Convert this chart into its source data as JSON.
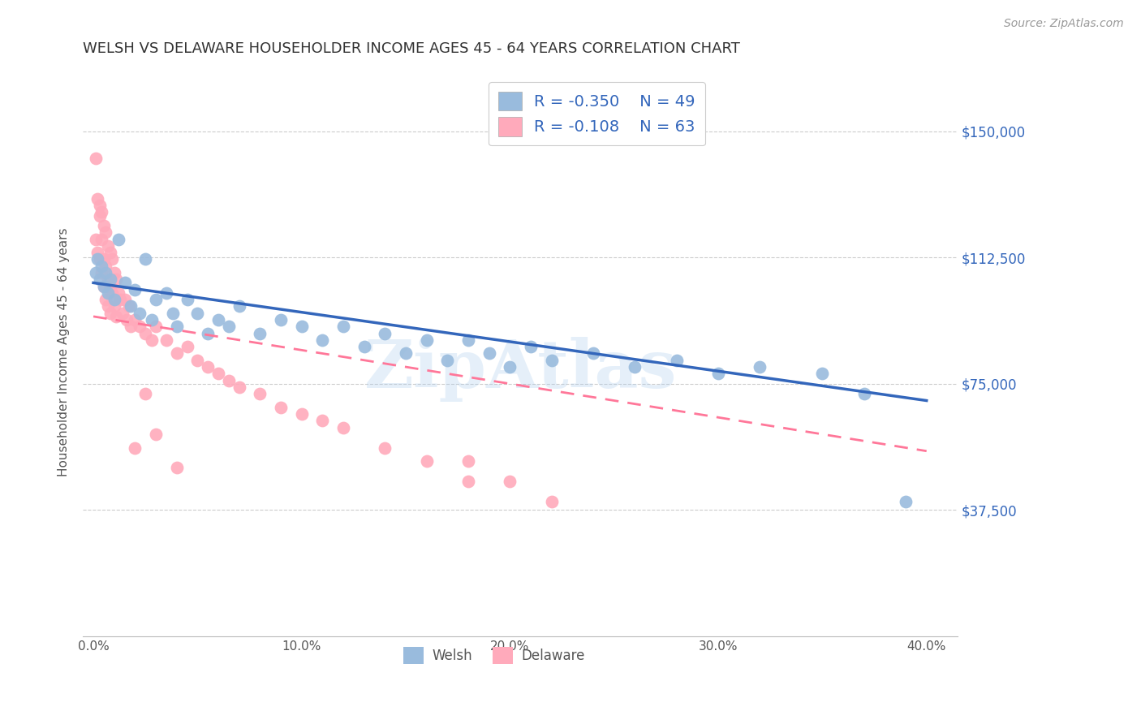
{
  "title": "WELSH VS DELAWARE HOUSEHOLDER INCOME AGES 45 - 64 YEARS CORRELATION CHART",
  "source": "Source: ZipAtlas.com",
  "ylabel": "Householder Income Ages 45 - 64 years",
  "ylabel_vals": [
    37500,
    75000,
    112500,
    150000
  ],
  "xlabel_vals": [
    0.0,
    0.1,
    0.2,
    0.3,
    0.4
  ],
  "ylim": [
    0,
    168750
  ],
  "xlim": [
    -0.005,
    0.415
  ],
  "welsh_R": -0.35,
  "welsh_N": 49,
  "delaware_R": -0.108,
  "delaware_N": 63,
  "welsh_color": "#99BBDD",
  "delaware_color": "#FFAABB",
  "welsh_line_color": "#3366BB",
  "delaware_line_color": "#FF7799",
  "legend_text_color": "#3366BB",
  "watermark": "ZipAtlas",
  "background_color": "#FFFFFF",
  "grid_color": "#CCCCCC",
  "welsh_x": [
    0.001,
    0.002,
    0.003,
    0.004,
    0.005,
    0.006,
    0.007,
    0.008,
    0.01,
    0.012,
    0.015,
    0.018,
    0.02,
    0.022,
    0.025,
    0.028,
    0.03,
    0.035,
    0.038,
    0.04,
    0.045,
    0.05,
    0.055,
    0.06,
    0.065,
    0.07,
    0.08,
    0.09,
    0.1,
    0.11,
    0.12,
    0.13,
    0.14,
    0.15,
    0.16,
    0.17,
    0.18,
    0.19,
    0.2,
    0.21,
    0.22,
    0.24,
    0.26,
    0.28,
    0.3,
    0.32,
    0.35,
    0.37,
    0.39
  ],
  "welsh_y": [
    108000,
    112000,
    106000,
    110000,
    104000,
    108000,
    102000,
    106000,
    100000,
    118000,
    105000,
    98000,
    103000,
    96000,
    112000,
    94000,
    100000,
    102000,
    96000,
    92000,
    100000,
    96000,
    90000,
    94000,
    92000,
    98000,
    90000,
    94000,
    92000,
    88000,
    92000,
    86000,
    90000,
    84000,
    88000,
    82000,
    88000,
    84000,
    80000,
    86000,
    82000,
    84000,
    80000,
    82000,
    78000,
    80000,
    78000,
    72000,
    40000
  ],
  "delaware_x": [
    0.001,
    0.001,
    0.002,
    0.002,
    0.003,
    0.003,
    0.003,
    0.004,
    0.004,
    0.004,
    0.005,
    0.005,
    0.005,
    0.006,
    0.006,
    0.006,
    0.007,
    0.007,
    0.007,
    0.008,
    0.008,
    0.008,
    0.009,
    0.009,
    0.01,
    0.01,
    0.011,
    0.011,
    0.012,
    0.013,
    0.014,
    0.015,
    0.016,
    0.017,
    0.018,
    0.02,
    0.022,
    0.025,
    0.028,
    0.03,
    0.035,
    0.04,
    0.045,
    0.05,
    0.055,
    0.06,
    0.065,
    0.07,
    0.08,
    0.09,
    0.1,
    0.11,
    0.12,
    0.14,
    0.16,
    0.18,
    0.02,
    0.025,
    0.03,
    0.04,
    0.18,
    0.2,
    0.22
  ],
  "delaware_y": [
    142000,
    118000,
    130000,
    114000,
    128000,
    112000,
    125000,
    126000,
    118000,
    108000,
    122000,
    112000,
    104000,
    120000,
    110000,
    100000,
    116000,
    106000,
    98000,
    114000,
    104000,
    96000,
    112000,
    102000,
    108000,
    98000,
    106000,
    95000,
    102000,
    100000,
    96000,
    100000,
    94000,
    98000,
    92000,
    94000,
    92000,
    90000,
    88000,
    92000,
    88000,
    84000,
    86000,
    82000,
    80000,
    78000,
    76000,
    74000,
    72000,
    68000,
    66000,
    64000,
    62000,
    56000,
    52000,
    46000,
    56000,
    72000,
    60000,
    50000,
    52000,
    46000,
    40000
  ],
  "welsh_line_x0": 0.0,
  "welsh_line_y0": 105000,
  "welsh_line_x1": 0.4,
  "welsh_line_y1": 70000,
  "delaware_line_x0": 0.0,
  "delaware_line_y0": 95000,
  "delaware_line_x1": 0.4,
  "delaware_line_y1": 55000
}
